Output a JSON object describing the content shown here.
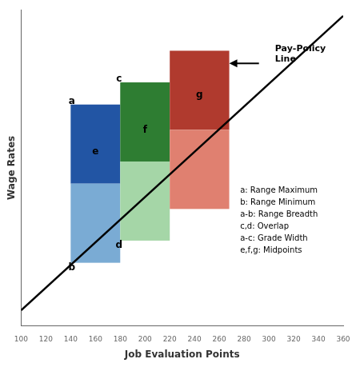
{
  "chart_data": {
    "type": "rectangles",
    "x_label": "Job Evaluation Points",
    "y_label": "Wage Rates",
    "xlim": [
      100,
      360
    ],
    "ylim": [
      0,
      10
    ],
    "xticks": [
      100,
      120,
      140,
      160,
      180,
      200,
      220,
      240,
      260,
      280,
      300,
      320,
      340,
      360
    ],
    "tick_labels": "x",
    "grid": false,
    "rectangles": [
      {
        "x": 140,
        "y": 4.5,
        "width": 40,
        "height": 2.5,
        "color": "#2255a4"
      },
      {
        "x": 140,
        "y": 2.0,
        "width": 40,
        "height": 2.5,
        "color": "#7aabd4"
      },
      {
        "x": 180,
        "y": 5.2,
        "width": 40,
        "height": 2.5,
        "color": "#2e7d32"
      },
      {
        "x": 180,
        "y": 2.7,
        "width": 40,
        "height": 2.5,
        "color": "#a5d6a7"
      },
      {
        "x": 220,
        "y": 6.2,
        "width": 48,
        "height": 2.5,
        "color": "#b03a2e"
      },
      {
        "x": 220,
        "y": 3.7,
        "width": 48,
        "height": 2.5,
        "color": "#e08070"
      }
    ],
    "line": {
      "x": [
        100,
        360
      ],
      "y": [
        0.5,
        9.8
      ],
      "color": "black"
    },
    "point_labels": [
      {
        "text": "a",
        "x": 141,
        "y": 7.1
      },
      {
        "text": "b",
        "x": 141,
        "y": 1.85
      },
      {
        "text": "c",
        "x": 179,
        "y": 7.8
      },
      {
        "text": "d",
        "x": 179,
        "y": 2.55
      },
      {
        "text": "e",
        "x": 160,
        "y": 5.5
      },
      {
        "text": "f",
        "x": 200,
        "y": 6.2
      },
      {
        "text": "g",
        "x": 244,
        "y": 7.3
      }
    ],
    "arrow": {
      "x_start": 292,
      "x_end": 268,
      "y": 8.3
    },
    "arrow_label": {
      "text": "Pay-Policy\nLine",
      "x": 305,
      "y": 8.6
    },
    "notes": [
      "a: Range Maximum",
      "b: Range Minimum",
      "a-b: Range Breadth",
      "c,d: Overlap",
      "a-c: Grade Width",
      "e,f,g: Midpoints"
    ]
  }
}
